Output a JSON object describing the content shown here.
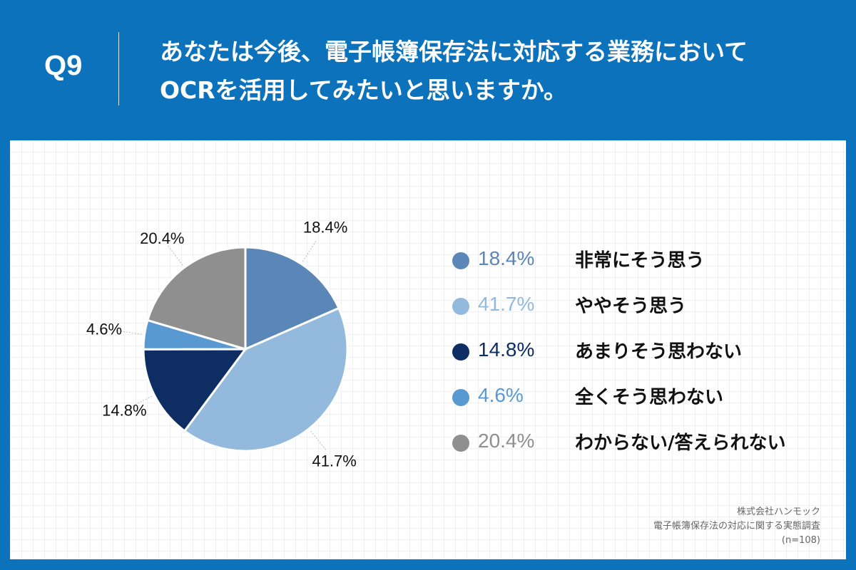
{
  "header": {
    "question_number": "Q9",
    "title_lines": [
      "あなたは今後、電子帳簿保存法に対応する業務において",
      "OCRを活用してみたいと思いますか。"
    ]
  },
  "chart_data": {
    "type": "pie",
    "slices": [
      {
        "label": "非常にそう思う",
        "value": 18.4,
        "display": "18.4%",
        "color": "#5b86b8"
      },
      {
        "label": "ややそう思う",
        "value": 41.7,
        "display": "41.7%",
        "color": "#93b9dc"
      },
      {
        "label": "あまりそう思わない",
        "value": 14.8,
        "display": "14.8%",
        "color": "#0d2d63"
      },
      {
        "label": "全くそう思わない",
        "value": 4.6,
        "display": "4.6%",
        "color": "#5899d2"
      },
      {
        "label": "わからない/答えられない",
        "value": 20.4,
        "display": "20.4%",
        "color": "#8f8f8f"
      }
    ],
    "start_angle_deg": 0,
    "direction": "clockwise"
  },
  "source": {
    "lines": [
      "株式会社ハンモック",
      "電子帳簿保存法の対応に関する実態調査",
      "(n=108)"
    ]
  }
}
